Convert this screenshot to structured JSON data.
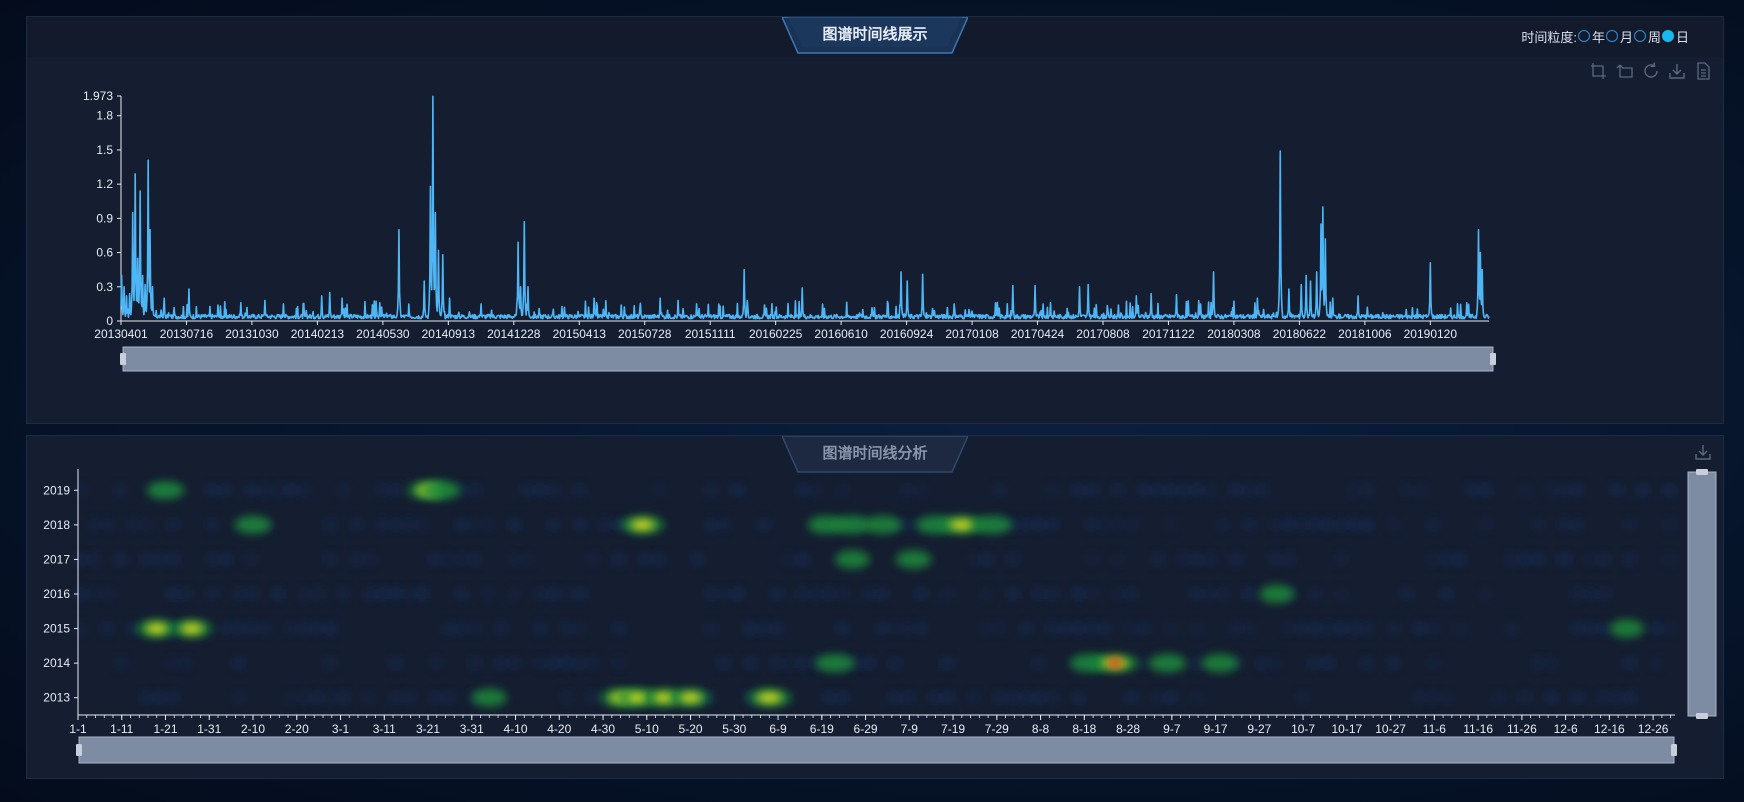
{
  "top_panel": {
    "title": "图谱时间线展示",
    "granularity": {
      "label": "时间粒度:",
      "options": [
        {
          "label": "年",
          "selected": false
        },
        {
          "label": "月",
          "selected": false
        },
        {
          "label": "周",
          "selected": false
        },
        {
          "label": "日",
          "selected": true
        }
      ]
    },
    "toolbox": [
      "zoom-area-icon",
      "zoom-reset-icon",
      "restore-icon",
      "download-icon",
      "data-view-icon"
    ]
  },
  "bottom_panel": {
    "title": "图谱时间线分析",
    "toolbox": [
      "download-icon"
    ]
  },
  "colors": {
    "line": "#4fb6f5",
    "axis": "#e6ecf5",
    "panel_bg": "#151d30",
    "zoom_fill": "#7d8ba3",
    "heat_low": "#14305e",
    "heat_mid": "#1e8a3a",
    "heat_high": "#e7e31e",
    "heat_max": "#e8231e"
  },
  "chart_data": [
    {
      "type": "line",
      "title": "",
      "ylim": [
        0,
        1.973
      ],
      "y_ticks": [
        "0",
        "0.3",
        "0.6",
        "0.9",
        "1.2",
        "1.5",
        "1.8",
        "1.973"
      ],
      "x_tick_labels": [
        "20130401",
        "20130716",
        "20131030",
        "20140213",
        "20140530",
        "20140913",
        "20141228",
        "20150413",
        "20150728",
        "20151111",
        "20160225",
        "20160610",
        "20160924",
        "20170108",
        "20170424",
        "20170808",
        "20171122",
        "20180308",
        "20180622",
        "20181006",
        "20190120"
      ],
      "baseline": 0.02,
      "peaks": [
        {
          "date": "2013-04-02",
          "value": 0.4
        },
        {
          "date": "2013-04-06",
          "value": 0.3
        },
        {
          "date": "2013-04-10",
          "value": 0.22
        },
        {
          "date": "2013-04-15",
          "value": 0.24
        },
        {
          "date": "2013-04-20",
          "value": 0.95
        },
        {
          "date": "2013-04-24",
          "value": 1.29
        },
        {
          "date": "2013-04-28",
          "value": 0.55
        },
        {
          "date": "2013-05-02",
          "value": 1.14
        },
        {
          "date": "2013-05-06",
          "value": 0.4
        },
        {
          "date": "2013-05-10",
          "value": 0.32
        },
        {
          "date": "2013-05-15",
          "value": 1.41
        },
        {
          "date": "2013-05-18",
          "value": 0.8
        },
        {
          "date": "2013-05-22",
          "value": 0.3
        },
        {
          "date": "2013-06-10",
          "value": 0.2
        },
        {
          "date": "2013-07-20",
          "value": 0.28
        },
        {
          "date": "2013-09-05",
          "value": 0.14
        },
        {
          "date": "2013-10-12",
          "value": 0.16
        },
        {
          "date": "2013-11-20",
          "value": 0.18
        },
        {
          "date": "2013-12-20",
          "value": 0.15
        },
        {
          "date": "2014-02-20",
          "value": 0.22
        },
        {
          "date": "2014-03-05",
          "value": 0.25
        },
        {
          "date": "2014-03-25",
          "value": 0.2
        },
        {
          "date": "2014-05-25",
          "value": 0.16
        },
        {
          "date": "2014-06-25",
          "value": 0.8
        },
        {
          "date": "2014-08-05",
          "value": 0.35
        },
        {
          "date": "2014-08-15",
          "value": 1.18
        },
        {
          "date": "2014-08-19",
          "value": 1.97
        },
        {
          "date": "2014-08-23",
          "value": 0.95
        },
        {
          "date": "2014-08-28",
          "value": 0.62
        },
        {
          "date": "2014-09-04",
          "value": 0.58
        },
        {
          "date": "2014-09-15",
          "value": 0.2
        },
        {
          "date": "2014-11-05",
          "value": 0.15
        },
        {
          "date": "2015-01-04",
          "value": 0.69
        },
        {
          "date": "2015-01-08",
          "value": 0.3
        },
        {
          "date": "2015-01-14",
          "value": 0.87
        },
        {
          "date": "2015-01-20",
          "value": 0.3
        },
        {
          "date": "2015-03-20",
          "value": 0.12
        },
        {
          "date": "2015-05-07",
          "value": 0.2
        },
        {
          "date": "2015-06-20",
          "value": 0.14
        },
        {
          "date": "2015-08-22",
          "value": 0.2
        },
        {
          "date": "2015-09-20",
          "value": 0.18
        },
        {
          "date": "2015-10-20",
          "value": 0.15
        },
        {
          "date": "2016-01-05",
          "value": 0.45
        },
        {
          "date": "2016-04-08",
          "value": 0.29
        },
        {
          "date": "2016-07-15",
          "value": 0.1
        },
        {
          "date": "2016-09-15",
          "value": 0.43
        },
        {
          "date": "2016-09-25",
          "value": 0.35
        },
        {
          "date": "2016-10-20",
          "value": 0.41
        },
        {
          "date": "2016-12-10",
          "value": 0.15
        },
        {
          "date": "2017-02-15",
          "value": 0.16
        },
        {
          "date": "2017-03-15",
          "value": 0.31
        },
        {
          "date": "2017-04-20",
          "value": 0.31
        },
        {
          "date": "2017-05-15",
          "value": 0.16
        },
        {
          "date": "2017-07-01",
          "value": 0.3
        },
        {
          "date": "2017-07-15",
          "value": 0.32
        },
        {
          "date": "2017-10-01",
          "value": 0.22
        },
        {
          "date": "2017-10-25",
          "value": 0.24
        },
        {
          "date": "2017-12-05",
          "value": 0.23
        },
        {
          "date": "2018-02-03",
          "value": 0.43
        },
        {
          "date": "2018-04-15",
          "value": 0.2
        },
        {
          "date": "2018-05-22",
          "value": 1.49
        },
        {
          "date": "2018-06-05",
          "value": 0.28
        },
        {
          "date": "2018-06-25",
          "value": 0.32
        },
        {
          "date": "2018-07-03",
          "value": 0.4
        },
        {
          "date": "2018-07-10",
          "value": 0.35
        },
        {
          "date": "2018-07-20",
          "value": 0.43
        },
        {
          "date": "2018-07-27",
          "value": 0.85
        },
        {
          "date": "2018-07-30",
          "value": 1.0
        },
        {
          "date": "2018-08-03",
          "value": 0.72
        },
        {
          "date": "2018-08-15",
          "value": 0.2
        },
        {
          "date": "2018-09-25",
          "value": 0.22
        },
        {
          "date": "2018-10-10",
          "value": 0.12
        },
        {
          "date": "2018-12-12",
          "value": 0.1
        },
        {
          "date": "2019-01-20",
          "value": 0.51
        },
        {
          "date": "2019-03-20",
          "value": 0.16
        },
        {
          "date": "2019-04-08",
          "value": 0.8
        },
        {
          "date": "2019-04-11",
          "value": 0.6
        },
        {
          "date": "2019-04-14",
          "value": 0.45
        }
      ]
    },
    {
      "type": "heatmap",
      "title": "",
      "y_categories": [
        "2019",
        "2018",
        "2017",
        "2016",
        "2015",
        "2014",
        "2013"
      ],
      "x_tick_labels": [
        "1-1",
        "1-11",
        "1-21",
        "1-31",
        "2-10",
        "2-20",
        "3-1",
        "3-11",
        "3-21",
        "3-31",
        "4-10",
        "4-20",
        "4-30",
        "5-10",
        "5-20",
        "5-30",
        "6-9",
        "6-19",
        "6-29",
        "7-9",
        "7-19",
        "7-29",
        "8-8",
        "8-18",
        "8-28",
        "9-7",
        "9-17",
        "9-27",
        "10-7",
        "10-17",
        "10-27",
        "11-6",
        "11-16",
        "11-26",
        "12-6",
        "12-16",
        "12-26"
      ],
      "hotspots": [
        {
          "year": "2019",
          "day": 21,
          "value": 0.35
        },
        {
          "year": "2019",
          "day": 81,
          "value": 0.55
        },
        {
          "year": "2019",
          "day": 84,
          "value": 0.45
        },
        {
          "year": "2018",
          "day": 41,
          "value": 0.3
        },
        {
          "year": "2018",
          "day": 130,
          "value": 0.75
        },
        {
          "year": "2018",
          "day": 172,
          "value": 0.3
        },
        {
          "year": "2018",
          "day": 178,
          "value": 0.35
        },
        {
          "year": "2018",
          "day": 185,
          "value": 0.35
        },
        {
          "year": "2018",
          "day": 197,
          "value": 0.45
        },
        {
          "year": "2018",
          "day": 203,
          "value": 0.8
        },
        {
          "year": "2018",
          "day": 210,
          "value": 0.45
        },
        {
          "year": "2017",
          "day": 178,
          "value": 0.2
        },
        {
          "year": "2017",
          "day": 192,
          "value": 0.25
        },
        {
          "year": "2016",
          "day": 275,
          "value": 0.15
        },
        {
          "year": "2015",
          "day": 19,
          "value": 0.55
        },
        {
          "year": "2015",
          "day": 27,
          "value": 0.55
        },
        {
          "year": "2015",
          "day": 355,
          "value": 0.15
        },
        {
          "year": "2014",
          "day": 174,
          "value": 0.45
        },
        {
          "year": "2014",
          "day": 232,
          "value": 0.35
        },
        {
          "year": "2014",
          "day": 238,
          "value": 1.0
        },
        {
          "year": "2014",
          "day": 250,
          "value": 0.35
        },
        {
          "year": "2014",
          "day": 262,
          "value": 0.3
        },
        {
          "year": "2013",
          "day": 95,
          "value": 0.2
        },
        {
          "year": "2013",
          "day": 125,
          "value": 0.55
        },
        {
          "year": "2013",
          "day": 129,
          "value": 0.55
        },
        {
          "year": "2013",
          "day": 135,
          "value": 0.5
        },
        {
          "year": "2013",
          "day": 141,
          "value": 0.5
        },
        {
          "year": "2013",
          "day": 159,
          "value": 0.8
        }
      ]
    }
  ]
}
